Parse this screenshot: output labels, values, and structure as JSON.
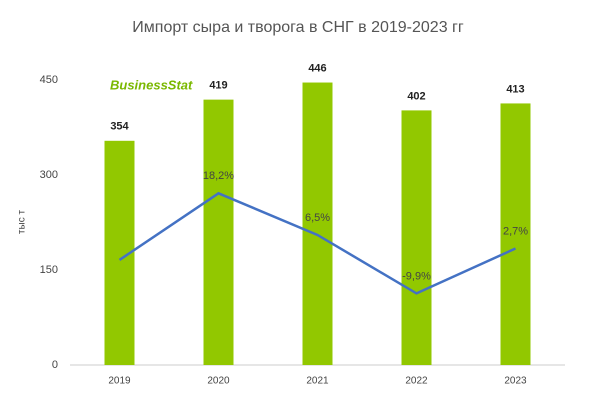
{
  "chart_data": {
    "type": "bar_line",
    "title": "Импорт сыра и творога в СНГ в 2019-2023 гг",
    "y_label": "тыс т",
    "logo": "BusinessStat",
    "categories": [
      "2019",
      "2020",
      "2021",
      "2022",
      "2023"
    ],
    "ylim": [
      0,
      450
    ],
    "yticks": [
      0,
      150,
      300,
      450
    ],
    "y2lim": [
      -30,
      50
    ],
    "series": [
      {
        "type": "bar",
        "color": "#92c800",
        "values": [
          354,
          419,
          446,
          402,
          413
        ]
      },
      {
        "type": "line",
        "axis": "y2",
        "color": "#4472c4",
        "values": [
          -0.5,
          18.2,
          6.5,
          -9.9,
          2.7
        ],
        "value_labels": [
          null,
          "18,2%",
          "6,5%",
          "-9,9%",
          "2,7%"
        ]
      }
    ]
  }
}
